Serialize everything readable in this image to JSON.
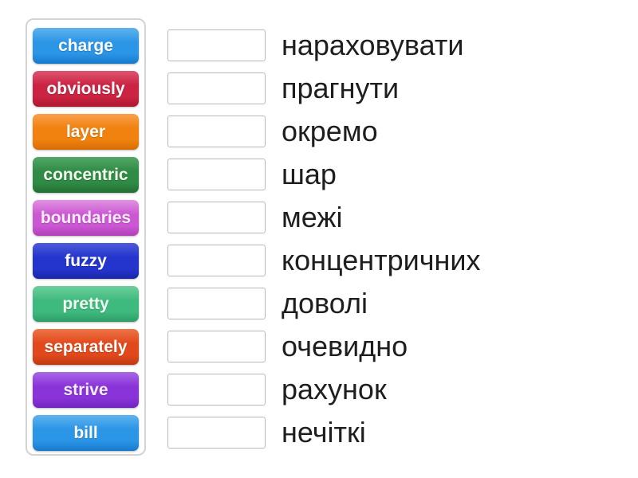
{
  "activity": {
    "name": "match-up-exercise"
  },
  "word_bank": {
    "tiles": [
      {
        "label": "charge",
        "color": "#2b95e6",
        "color_top": "#5fb3ee",
        "color_dark": "#1879cc",
        "text_color": "#ffffff"
      },
      {
        "label": "obviously",
        "color": "#cb2342",
        "color_top": "#dc5570",
        "color_dark": "#ad1631",
        "text_color": "#ffffff"
      },
      {
        "label": "layer",
        "color": "#f1820f",
        "color_top": "#f9a04b",
        "color_dark": "#d56c05",
        "text_color": "#ffffff"
      },
      {
        "label": "concentric",
        "color": "#2f8b45",
        "color_top": "#55a868",
        "color_dark": "#226f34",
        "text_color": "#f5fbee"
      },
      {
        "label": "boundaries",
        "color": "#cb58d2",
        "color_top": "#e092e3",
        "color_dark": "#b03fb8",
        "text_color": "#f8eefb"
      },
      {
        "label": "fuzzy",
        "color": "#2435cd",
        "color_top": "#4d5cd9",
        "color_dark": "#1a27a8",
        "text_color": "#ffffff"
      },
      {
        "label": "pretty",
        "color": "#3eba7e",
        "color_top": "#6fcf9d",
        "color_dark": "#2f9c66",
        "text_color": "#f2fbf2"
      },
      {
        "label": "separately",
        "color": "#e1491c",
        "color_top": "#ee7446",
        "color_dark": "#c03a10",
        "text_color": "#ffffff"
      },
      {
        "label": "strive",
        "color": "#8a33d8",
        "color_top": "#a968e6",
        "color_dark": "#7224bd",
        "text_color": "#f6eefc"
      },
      {
        "label": "bill",
        "color": "#2b95e6",
        "color_top": "#5fb3ee",
        "color_dark": "#1879cc",
        "text_color": "#ffffff"
      }
    ]
  },
  "answers": {
    "rows": [
      {
        "answer": "нараховувати"
      },
      {
        "answer": "прагнути"
      },
      {
        "answer": "окремо"
      },
      {
        "answer": "шар"
      },
      {
        "answer": "межі"
      },
      {
        "answer": "концентричних"
      },
      {
        "answer": "доволі"
      },
      {
        "answer": "очевидно"
      },
      {
        "answer": "рахунок"
      },
      {
        "answer": "нечіткі"
      }
    ]
  }
}
